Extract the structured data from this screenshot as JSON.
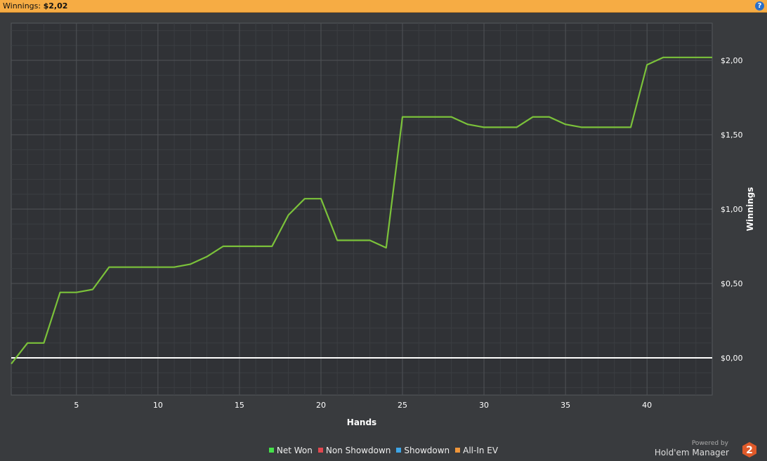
{
  "header": {
    "label": "Winnings:",
    "value": "$2,02",
    "help_icon": "?"
  },
  "legend": [
    {
      "label": "Net Won",
      "color": "#45e04a"
    },
    {
      "label": "Non Showdown",
      "color": "#e2474f"
    },
    {
      "label": "Showdown",
      "color": "#3ea6e8"
    },
    {
      "label": "All-In EV",
      "color": "#f0963a"
    }
  ],
  "branding": {
    "powered_by": "Powered by",
    "name": "Hold'em Manager",
    "logo_text": "2"
  },
  "chart_data": {
    "type": "line",
    "xlabel": "Hands",
    "ylabel": "Winnings",
    "xlim": [
      1,
      44
    ],
    "ylim": [
      -0.25,
      2.25
    ],
    "x_ticks": [
      5,
      10,
      15,
      20,
      25,
      30,
      35,
      40
    ],
    "y_ticks": [
      0,
      0.5,
      1.0,
      1.5,
      2.0
    ],
    "y_tick_labels": [
      "$0,00",
      "$0,50",
      "$1,00",
      "$1,50",
      "$2,00"
    ],
    "grid": true,
    "legend_position": "bottom",
    "series": [
      {
        "name": "Net Won",
        "color": "#7bc23a",
        "x": [
          1,
          2,
          3,
          4,
          5,
          6,
          7,
          8,
          9,
          10,
          11,
          12,
          13,
          14,
          15,
          16,
          17,
          18,
          19,
          20,
          21,
          22,
          23,
          24,
          25,
          26,
          27,
          28,
          29,
          30,
          31,
          32,
          33,
          34,
          35,
          36,
          37,
          38,
          39,
          40,
          41,
          42,
          43,
          44
        ],
        "values": [
          -0.04,
          0.1,
          0.1,
          0.44,
          0.44,
          0.46,
          0.61,
          0.61,
          0.61,
          0.61,
          0.61,
          0.63,
          0.68,
          0.75,
          0.75,
          0.75,
          0.75,
          0.96,
          1.07,
          1.07,
          0.79,
          0.79,
          0.79,
          0.74,
          1.62,
          1.62,
          1.62,
          1.62,
          1.57,
          1.55,
          1.55,
          1.55,
          1.62,
          1.62,
          1.57,
          1.55,
          1.55,
          1.55,
          1.55,
          1.97,
          2.02,
          2.02,
          2.02,
          2.02
        ]
      },
      {
        "color": "#ffffff",
        "x": [
          1,
          44
        ],
        "values": [
          0,
          0
        ]
      }
    ]
  }
}
